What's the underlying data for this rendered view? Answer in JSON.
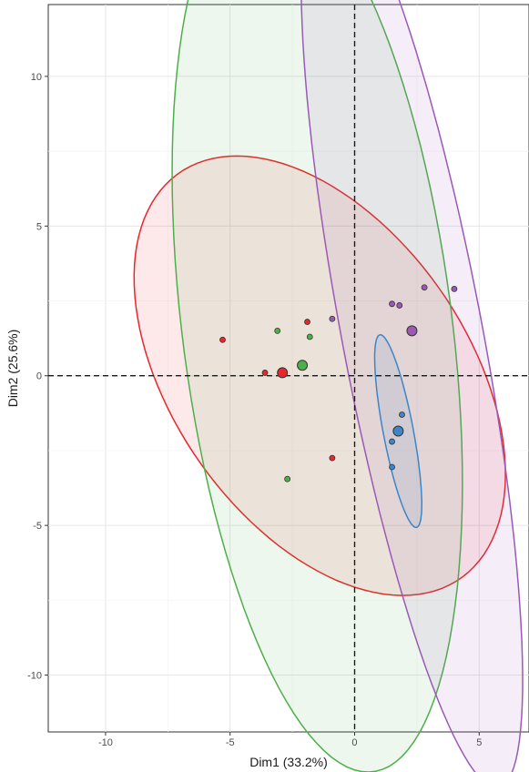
{
  "chart_data": {
    "type": "scatter",
    "title": "",
    "xlabel": "Dim1 (33.2%)",
    "ylabel": "Dim2 (25.6%)",
    "xlim": [
      -12.3,
      7.0
    ],
    "ylim": [
      -11.9,
      12.4
    ],
    "xticks": [
      -10,
      -5,
      0,
      5
    ],
    "yticks": [
      -10,
      -5,
      0,
      5,
      10
    ],
    "xtick_labels": [
      "-10",
      "-5",
      "0",
      "5"
    ],
    "ytick_labels": [
      "-10",
      "-5",
      "0",
      "5",
      "10"
    ],
    "grid": true,
    "reference_lines": {
      "x": 0,
      "y": 0,
      "style": "dashed"
    },
    "series": [
      {
        "color": "#e8262b",
        "points": [
          [
            -5.3,
            1.2
          ],
          [
            -3.6,
            0.1
          ],
          [
            -1.9,
            1.8
          ],
          [
            -0.9,
            -2.75
          ]
        ],
        "centroid": [
          -2.9,
          0.1
        ],
        "ellipse": {
          "cx": -1.4,
          "cy": 0.0,
          "rx": 8.9,
          "ry": 5.5,
          "angle_deg": -44
        }
      },
      {
        "color": "#4daf4a",
        "points": [
          [
            -3.1,
            1.5
          ],
          [
            -1.8,
            1.3
          ],
          [
            -2.7,
            -3.45
          ]
        ],
        "centroid": [
          -2.1,
          0.35
        ],
        "ellipse": {
          "cx": -1.5,
          "cy": 1.6,
          "rx": 5.4,
          "ry": 15.0,
          "angle_deg": 9
        }
      },
      {
        "color": "#9b59b6",
        "points": [
          [
            -0.9,
            1.9
          ],
          [
            1.5,
            2.4
          ],
          [
            1.8,
            2.35
          ],
          [
            2.8,
            2.95
          ],
          [
            4.0,
            2.9
          ]
        ],
        "centroid": [
          2.3,
          1.5
        ],
        "ellipse": {
          "cx": 2.3,
          "cy": 1.45,
          "rx": 2.8,
          "ry": 15.6,
          "angle_deg": 13
        }
      },
      {
        "color": "#3a86c8",
        "points": [
          [
            1.9,
            -1.3
          ],
          [
            1.5,
            -2.2
          ],
          [
            1.5,
            -3.05
          ]
        ],
        "centroid": [
          1.75,
          -1.85
        ],
        "ellipse": {
          "cx": 1.75,
          "cy": -1.85,
          "rx": 0.6,
          "ry": 3.3,
          "angle_deg": 13
        }
      }
    ]
  }
}
